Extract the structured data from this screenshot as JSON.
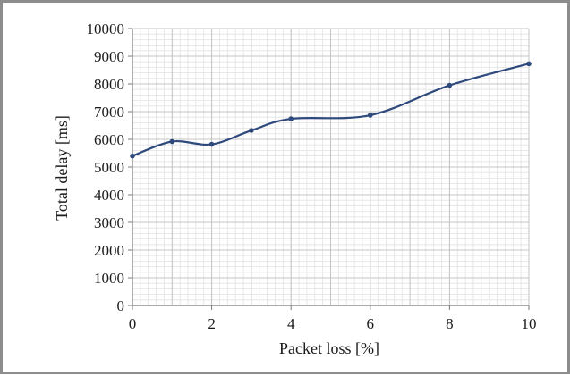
{
  "chart_data": {
    "type": "line",
    "title": "",
    "xlabel": "Packet loss [%]",
    "ylabel": "Total delay [ms]",
    "xlim": [
      0,
      10
    ],
    "ylim": [
      0,
      10000
    ],
    "x_ticks": [
      "0",
      "2",
      "4",
      "6",
      "8",
      "10"
    ],
    "y_ticks": [
      "0",
      "1000",
      "2000",
      "3000",
      "4000",
      "5000",
      "6000",
      "7000",
      "8000",
      "9000",
      "10000"
    ],
    "grid": true,
    "legend": "none",
    "line_color": "#2e4a7d",
    "series": [
      {
        "x": [
          0,
          1,
          2,
          3,
          4,
          6,
          8,
          10
        ],
        "y": [
          5400,
          5920,
          5820,
          6320,
          6740,
          6870,
          7950,
          8730
        ]
      }
    ]
  }
}
